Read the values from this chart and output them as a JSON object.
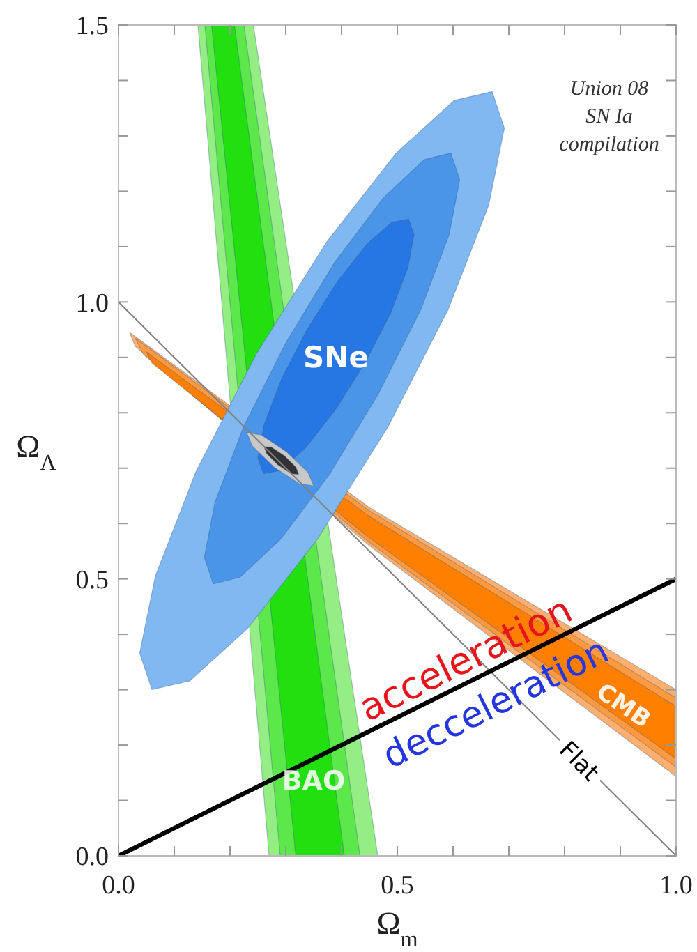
{
  "chart_data": {
    "type": "area",
    "xlabel": "Ω$_{m}$",
    "ylabel": "Ω$_{Λ}$",
    "xlim": [
      0,
      1
    ],
    "ylim": [
      0,
      1.5
    ],
    "xticks": [
      {
        "value": 0,
        "label": "0.0"
      },
      {
        "value": 0.1,
        "label": null
      },
      {
        "value": 0.2,
        "label": null
      },
      {
        "value": 0.3,
        "label": null
      },
      {
        "value": 0.4,
        "label": null
      },
      {
        "value": 0.5,
        "label": "0.5"
      },
      {
        "value": 0.6,
        "label": null
      },
      {
        "value": 0.7,
        "label": null
      },
      {
        "value": 0.8,
        "label": null
      },
      {
        "value": 0.9,
        "label": null
      },
      {
        "value": 1,
        "label": "1.0"
      }
    ],
    "yticks": [
      {
        "value": 0,
        "label": "0.0"
      },
      {
        "value": 0.1,
        "label": null
      },
      {
        "value": 0.2,
        "label": null
      },
      {
        "value": 0.3,
        "label": null
      },
      {
        "value": 0.4,
        "label": null
      },
      {
        "value": 0.5,
        "label": "0.5"
      },
      {
        "value": 0.6,
        "label": null
      },
      {
        "value": 0.7,
        "label": null
      },
      {
        "value": 0.8,
        "label": null
      },
      {
        "value": 0.9,
        "label": null
      },
      {
        "value": 1,
        "label": "1.0"
      },
      {
        "value": 1.1,
        "label": null
      },
      {
        "value": 1.2,
        "label": null
      },
      {
        "value": 1.3,
        "label": null
      },
      {
        "value": 1.4,
        "label": null
      },
      {
        "value": 1.5,
        "label": "1.5"
      }
    ],
    "series": [
      {
        "color": "#94ee84",
        "x": [
          0.1425,
          0.242,
          0.465,
          0.27
        ],
        "values": [
          1.5,
          1.5,
          0,
          0
        ]
      },
      {
        "color": "#5ce84a",
        "x": [
          0.155,
          0.225,
          0.433,
          0.29
        ],
        "values": [
          1.5,
          1.5,
          0,
          0
        ]
      },
      {
        "color": "#22e010",
        "x": [
          0.167,
          0.208,
          0.405,
          0.318
        ],
        "values": [
          1.5,
          1.5,
          0,
          0
        ]
      },
      {
        "color": "#ffb070",
        "x": [
          0.02,
          0.45,
          1.0,
          1.0,
          0.45,
          0.03
        ],
        "values": [
          0.945,
          0.629,
          0.3,
          0.143,
          0.56,
          0.92
        ]
      },
      {
        "color": "#ff9a40",
        "x": [
          0.03,
          0.45,
          1.0,
          1.0,
          0.45,
          0.045
        ],
        "values": [
          0.935,
          0.623,
          0.285,
          0.16,
          0.566,
          0.905
        ]
      },
      {
        "color": "#ff7f00",
        "x": [
          0.05,
          0.45,
          1.0,
          1.0,
          0.45,
          0.06
        ],
        "values": [
          0.91,
          0.613,
          0.27,
          0.175,
          0.574,
          0.89
        ]
      },
      {
        "color": "#80b8f2",
        "x": [
          0.67,
          0.692,
          0.664,
          0.591,
          0.483,
          0.357,
          0.232,
          0.128,
          0.06,
          0.038,
          0.066,
          0.139,
          0.247,
          0.373,
          0.498,
          0.602
        ],
        "values": [
          1.38,
          1.314,
          1.175,
          0.986,
          0.774,
          0.572,
          0.411,
          0.316,
          0.3,
          0.366,
          0.505,
          0.694,
          0.906,
          1.108,
          1.269,
          1.364
        ]
      },
      {
        "color": "#4b95e8",
        "x": [
          0.596,
          0.612,
          0.593,
          0.542,
          0.466,
          0.378,
          0.291,
          0.218,
          0.17,
          0.154,
          0.173,
          0.224,
          0.3,
          0.388,
          0.475,
          0.548
        ],
        "values": [
          1.269,
          1.221,
          1.122,
          0.986,
          0.834,
          0.688,
          0.572,
          0.503,
          0.491,
          0.539,
          0.638,
          0.774,
          0.926,
          1.072,
          1.188,
          1.257
        ]
      },
      {
        "color": "#2677e4",
        "x": [
          0.52,
          0.53,
          0.519,
          0.488,
          0.442,
          0.388,
          0.335,
          0.29,
          0.26,
          0.25,
          0.261,
          0.292,
          0.338,
          0.392,
          0.445,
          0.49
        ],
        "values": [
          1.15,
          1.122,
          1.062,
          0.98,
          0.89,
          0.804,
          0.736,
          0.696,
          0.69,
          0.718,
          0.778,
          0.86,
          0.95,
          1.036,
          1.104,
          1.144
        ]
      },
      {
        "color": "#c8c8c8",
        "x": [
          0.35,
          0.34,
          0.301,
          0.256,
          0.23,
          0.24,
          0.279,
          0.324
        ],
        "values": [
          0.668,
          0.692,
          0.73,
          0.76,
          0.764,
          0.74,
          0.702,
          0.672
        ]
      },
      {
        "color": "#333333",
        "x": [
          0.323,
          0.318,
          0.298,
          0.274,
          0.261,
          0.266,
          0.286,
          0.31
        ],
        "values": [
          0.689,
          0.702,
          0.722,
          0.738,
          0.739,
          0.726,
          0.706,
          0.69
        ]
      },
      {
        "type": "line",
        "color": "#808080",
        "x": [
          0,
          1
        ],
        "values": [
          1,
          0
        ]
      },
      {
        "type": "line",
        "color": "#000000",
        "x": [
          0,
          1
        ],
        "values": [
          0,
          0.5
        ]
      }
    ],
    "annotations": [
      "Union 08 SN Ia compilation",
      "SNe",
      "BAO",
      "CMB",
      "acceleration",
      "decceleration",
      "Flat"
    ]
  }
}
